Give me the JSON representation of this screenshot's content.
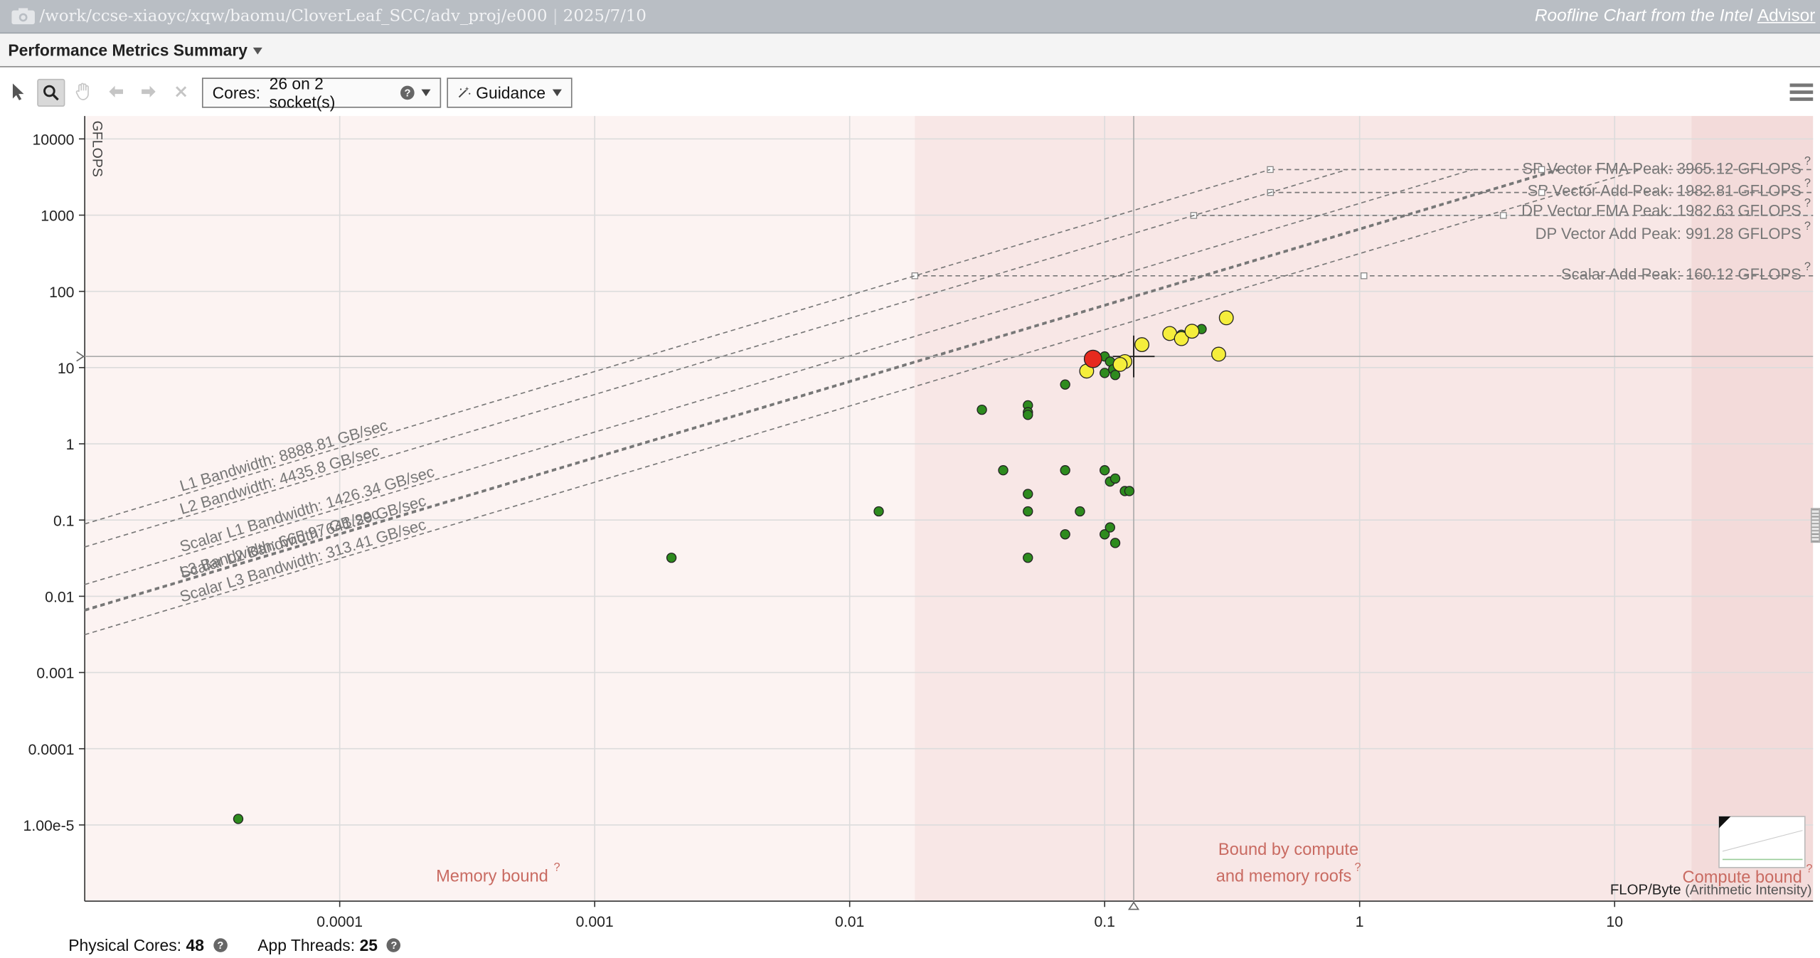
{
  "window": {
    "path": "/work/ccse-xiaoyc/xqw/baomu/CloverLeaf_SCC/adv_proj/e000",
    "date": "2025/7/10",
    "brand_prefix": "Roofline Chart from the Intel",
    "brand_link": "Advisor"
  },
  "header": {
    "title": "Performance Metrics Summary"
  },
  "toolbar": {
    "cores_label": "Cores:",
    "cores_value": "26 on 2 socket(s)",
    "guidance_label": "Guidance",
    "icons": [
      "pointer-icon",
      "zoom-icon",
      "hand-icon",
      "undo-icon",
      "redo-icon",
      "close-icon",
      "menu-icon"
    ]
  },
  "footer": {
    "physical_cores_label": "Physical Cores:",
    "physical_cores_value": "48",
    "app_threads_label": "App Threads:",
    "app_threads_value": "25"
  },
  "chart_data": {
    "type": "scatter",
    "xscale": "log",
    "yscale": "log",
    "xlim": [
      1e-05,
      60
    ],
    "ylim": [
      1e-06,
      20000
    ],
    "ylabel": "GFLOPS",
    "xlabel": "FLOP/Byte",
    "xlabel_note": "(Arithmetic Intensity)",
    "x_ticks": [
      {
        "v": 0.0001,
        "label": "0.0001"
      },
      {
        "v": 0.001,
        "label": "0.001"
      },
      {
        "v": 0.01,
        "label": "0.01"
      },
      {
        "v": 0.1,
        "label": "0.1"
      },
      {
        "v": 1,
        "label": "1"
      },
      {
        "v": 10,
        "label": "10"
      }
    ],
    "y_ticks": [
      {
        "v": 10000,
        "label": "10000"
      },
      {
        "v": 1000,
        "label": "1000"
      },
      {
        "v": 100,
        "label": "100"
      },
      {
        "v": 10,
        "label": "10"
      },
      {
        "v": 1,
        "label": "1"
      },
      {
        "v": 0.1,
        "label": "0.1"
      },
      {
        "v": 0.01,
        "label": "0.01"
      },
      {
        "v": 0.001,
        "label": "0.001"
      },
      {
        "v": 0.0001,
        "label": "0.0001"
      },
      {
        "v": 1e-05,
        "label": "1.00e-5"
      }
    ],
    "compute_roofs": [
      {
        "label": "SP Vector FMA Peak: 3965.12 GFLOPS",
        "gflops": 3965.12
      },
      {
        "label": "SP Vector Add Peak: 1982.81 GFLOPS",
        "gflops": 1982.81
      },
      {
        "label": "DP Vector FMA Peak: 1982.63 GFLOPS",
        "gflops": 1982.63
      },
      {
        "label": "DP Vector Add Peak: 991.28 GFLOPS",
        "gflops": 991.28
      },
      {
        "label": "Scalar Add Peak: 160.12 GFLOPS",
        "gflops": 160.12
      }
    ],
    "memory_roofs": [
      {
        "label": "L1 Bandwidth: 8888.81 GB/sec",
        "gbps": 8888.81,
        "cap": 3965.12
      },
      {
        "label": "L2 Bandwidth: 4435.8 GB/sec",
        "gbps": 4435.8,
        "cap": 3965.12
      },
      {
        "label": "Scalar L1 Bandwidth: 1426.34 GB/sec",
        "gbps": 1426.34,
        "cap": 3965.12
      },
      {
        "label": "L3 Bandwidth: 665.97 GB/sec",
        "gbps": 665.97,
        "cap": 3965.12
      },
      {
        "label": "Scalar L2 Bandwidth: 641.29 GB/sec",
        "gbps": 641.29,
        "cap": 3965.12
      },
      {
        "label": "Scalar L3 Bandwidth: 313.41 GB/sec",
        "gbps": 313.41,
        "cap": 3965.12
      }
    ],
    "regions": [
      {
        "label": "Memory bound"
      },
      {
        "label_line1": "Bound by compute",
        "label_line2": "and memory roofs"
      },
      {
        "label": "Compute bound"
      }
    ],
    "crosshair": {
      "x": 0.13,
      "y": 14
    },
    "series": [
      {
        "name": "green",
        "color": "#2e8b1e",
        "points": [
          [
            4e-05,
            1.2e-05
          ],
          [
            0.002,
            0.032
          ],
          [
            0.013,
            0.13
          ],
          [
            0.033,
            2.8
          ],
          [
            0.04,
            0.45
          ],
          [
            0.05,
            3.2
          ],
          [
            0.05,
            2.6
          ],
          [
            0.05,
            2.4
          ],
          [
            0.05,
            0.22
          ],
          [
            0.05,
            0.13
          ],
          [
            0.05,
            0.032
          ],
          [
            0.07,
            6
          ],
          [
            0.07,
            0.45
          ],
          [
            0.07,
            0.065
          ],
          [
            0.08,
            0.13
          ],
          [
            0.1,
            14
          ],
          [
            0.1,
            8.5
          ],
          [
            0.1,
            0.45
          ],
          [
            0.1,
            0.065
          ],
          [
            0.105,
            0.08
          ],
          [
            0.105,
            0.32
          ],
          [
            0.105,
            12
          ],
          [
            0.108,
            9.5
          ],
          [
            0.11,
            8
          ],
          [
            0.11,
            0.35
          ],
          [
            0.11,
            0.05
          ],
          [
            0.12,
            0.24
          ],
          [
            0.125,
            0.24
          ],
          [
            0.2,
            27
          ],
          [
            0.24,
            32
          ]
        ]
      },
      {
        "name": "yellow",
        "color": "#f5ee3c",
        "points": [
          [
            0.085,
            9
          ],
          [
            0.12,
            12
          ],
          [
            0.115,
            11
          ],
          [
            0.14,
            20
          ],
          [
            0.18,
            28
          ],
          [
            0.2,
            24
          ],
          [
            0.22,
            30
          ],
          [
            0.28,
            15
          ],
          [
            0.3,
            45
          ]
        ]
      },
      {
        "name": "red",
        "color": "#e62a1e",
        "points": [
          [
            0.09,
            13
          ]
        ]
      }
    ]
  }
}
